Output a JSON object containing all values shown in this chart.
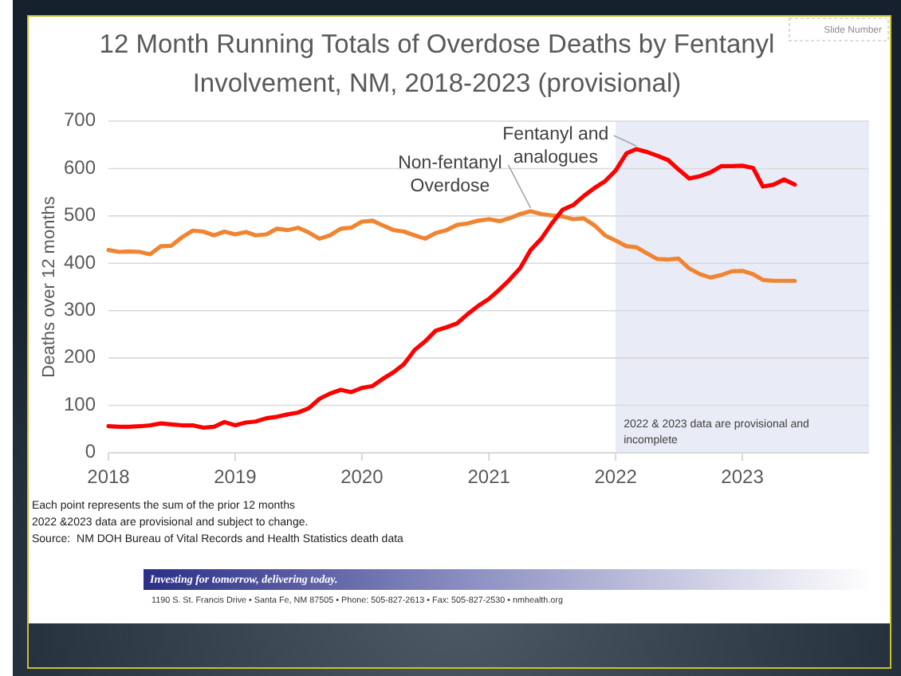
{
  "chart_data": {
    "type": "line",
    "title": "12 Month Running Totals of Overdose Deaths by Fentanyl Involvement, NM, 2018-2023 (provisional)",
    "ylabel": "Deaths over 12 months",
    "x": [
      "2018-01",
      "2018-02",
      "2018-03",
      "2018-04",
      "2018-05",
      "2018-06",
      "2018-07",
      "2018-08",
      "2018-09",
      "2018-10",
      "2018-11",
      "2018-12",
      "2019-01",
      "2019-02",
      "2019-03",
      "2019-04",
      "2019-05",
      "2019-06",
      "2019-07",
      "2019-08",
      "2019-09",
      "2019-10",
      "2019-11",
      "2019-12",
      "2020-01",
      "2020-02",
      "2020-03",
      "2020-04",
      "2020-05",
      "2020-06",
      "2020-07",
      "2020-08",
      "2020-09",
      "2020-10",
      "2020-11",
      "2020-12",
      "2021-01",
      "2021-02",
      "2021-03",
      "2021-04",
      "2021-05",
      "2021-06",
      "2021-07",
      "2021-08",
      "2021-09",
      "2021-10",
      "2021-11",
      "2021-12",
      "2022-01",
      "2022-02",
      "2022-03",
      "2022-04",
      "2022-05",
      "2022-06",
      "2022-07",
      "2022-08",
      "2022-09",
      "2022-10",
      "2022-11",
      "2022-12",
      "2023-01",
      "2023-02",
      "2023-03",
      "2023-04",
      "2023-05",
      "2023-06"
    ],
    "series": [
      {
        "name": "Non-fentanyl Overdose",
        "color": "#ef8533",
        "values": [
          428,
          424,
          425,
          424,
          419,
          436,
          437,
          455,
          469,
          467,
          459,
          467,
          461,
          466,
          459,
          461,
          473,
          470,
          475,
          465,
          452,
          459,
          473,
          475,
          488,
          490,
          480,
          470,
          467,
          459,
          452,
          464,
          470,
          481,
          484,
          490,
          493,
          489,
          495,
          504,
          510,
          504,
          501,
          499,
          493,
          495,
          480,
          459,
          448,
          436,
          434,
          421,
          409,
          408,
          410,
          389,
          377,
          370,
          375,
          383,
          384,
          377,
          365,
          363,
          363,
          363
        ]
      },
      {
        "name": "Fentanyl and analogues",
        "color": "#ff0000",
        "values": [
          56,
          55,
          55,
          56,
          58,
          62,
          60,
          58,
          58,
          53,
          55,
          65,
          58,
          64,
          66,
          73,
          76,
          81,
          85,
          94,
          114,
          125,
          133,
          128,
          137,
          141,
          156,
          170,
          187,
          217,
          235,
          258,
          265,
          273,
          293,
          310,
          325,
          345,
          365,
          390,
          428,
          452,
          484,
          513,
          523,
          542,
          559,
          573,
          596,
          632,
          641,
          635,
          627,
          618,
          598,
          579,
          584,
          592,
          605,
          605,
          606,
          601,
          562,
          566,
          577,
          566
        ]
      }
    ],
    "xlim": [
      "2018-01",
      "2024-01"
    ],
    "xticks": [
      "2018",
      "2019",
      "2020",
      "2021",
      "2022",
      "2023"
    ],
    "ylim": [
      0,
      700
    ],
    "yticks": [
      0,
      100,
      200,
      300,
      400,
      500,
      600,
      700
    ],
    "grid": "y",
    "bands": [
      {
        "axis": "x",
        "from": "2022-01",
        "to": "2024-01",
        "label": "2022 & 2023 data are provisional and incomplete",
        "color": "#e9ecf6"
      }
    ],
    "annotations": [
      "Each point represents the sum of the prior 12 months",
      "2022 &2023 data are provisional and subject to change.",
      "Source:  NM DOH Bureau of Vital Records and Health Statistics death data",
      "Investing for tomorrow, delivering today.",
      "1190 S. St. Francis Drive • Santa Fe, NM 87505 • Phone: 505-827-2613 • Fax: 505-827-2530 • nmhealth.org",
      "Slide Number"
    ]
  }
}
